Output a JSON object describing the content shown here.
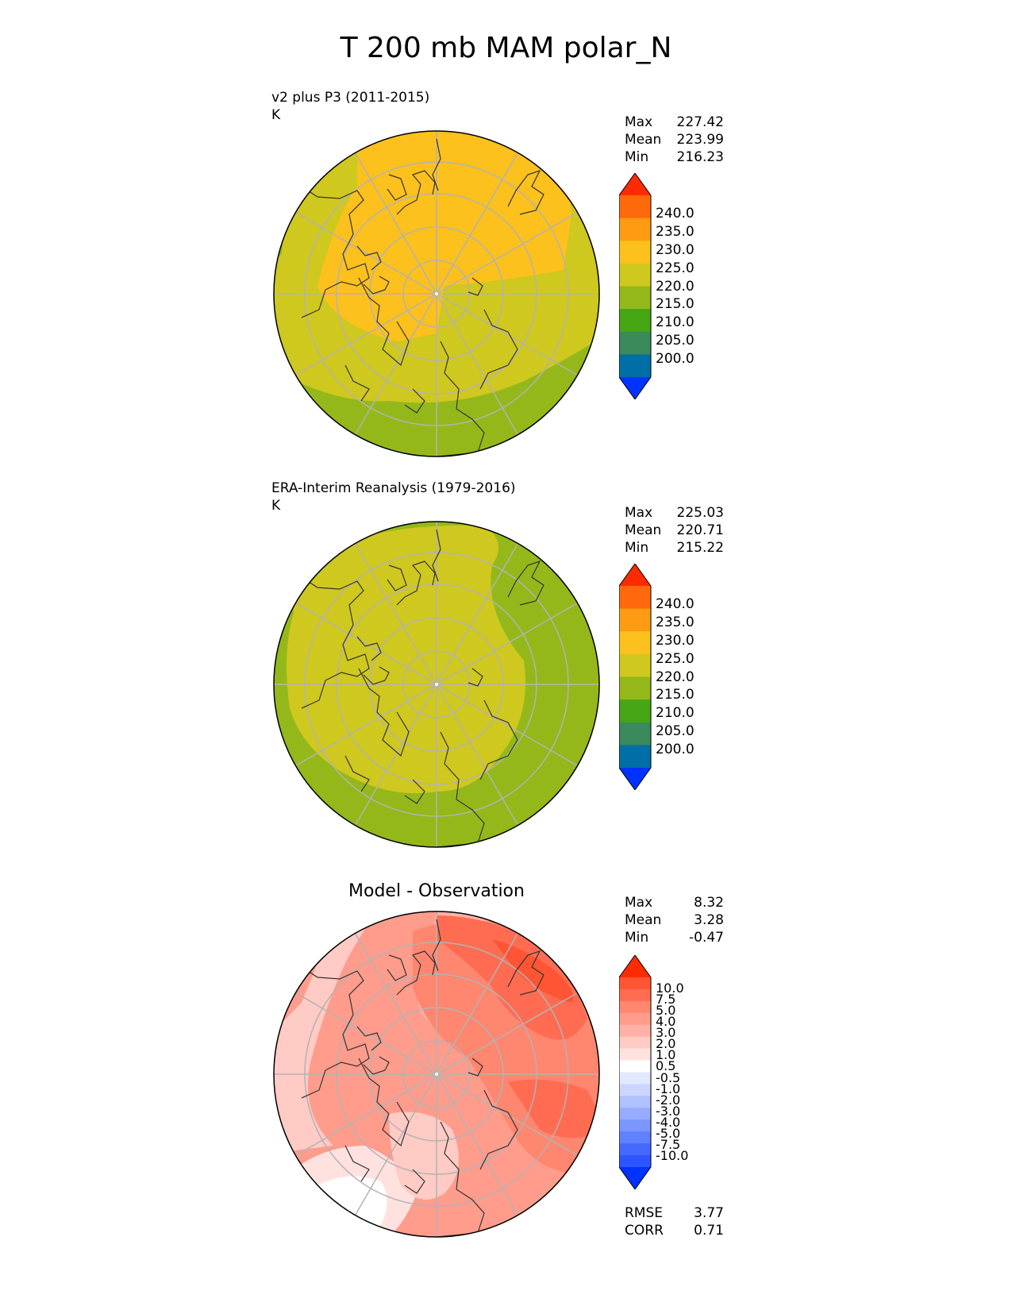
{
  "main_title": "T 200 mb MAM polar_N",
  "colors": {
    "t_levels": [
      "#0033ff",
      "#006fa5",
      "#3a8a5c",
      "#46a613",
      "#94b81a",
      "#cfc81e",
      "#fcc11c",
      "#fd9b12",
      "#fd690b",
      "#ff2b00"
    ],
    "diff_levels": [
      "#0033ff",
      "#2d55ff",
      "#4568ff",
      "#5f80ff",
      "#7b96ff",
      "#97abff",
      "#b1c1ff",
      "#cbd5ff",
      "#e2e8ff",
      "#ffffff",
      "#ffe2e0",
      "#ffcbc4",
      "#ffb1a6",
      "#ff9c8c",
      "#ff866f",
      "#ff6c52",
      "#ff5534",
      "#ff2b00"
    ],
    "map_border": "#000000",
    "grid": "#b3b3b3",
    "coast": "#333333"
  },
  "panels": [
    {
      "name": "model",
      "title": "v2 plus P3 (2011-2015)",
      "units": "K",
      "stats": [
        {
          "label": "Max",
          "value": "227.42"
        },
        {
          "label": "Mean",
          "value": "223.99"
        },
        {
          "label": "Min",
          "value": "216.23"
        }
      ],
      "ticks": [
        "240.0",
        "235.0",
        "230.0",
        "225.0",
        "220.0",
        "215.0",
        "210.0",
        "205.0",
        "200.0"
      ],
      "icons": [
        "polar-map-icon"
      ]
    },
    {
      "name": "obs",
      "title": "ERA-Interim Reanalysis (1979-2016)",
      "units": "K",
      "stats": [
        {
          "label": "Max",
          "value": "225.03"
        },
        {
          "label": "Mean",
          "value": "220.71"
        },
        {
          "label": "Min",
          "value": "215.22"
        }
      ],
      "ticks": [
        "240.0",
        "235.0",
        "230.0",
        "225.0",
        "220.0",
        "215.0",
        "210.0",
        "205.0",
        "200.0"
      ]
    },
    {
      "name": "diff",
      "title": "Model - Observation",
      "stats": [
        {
          "label": "Max",
          "value": "8.32"
        },
        {
          "label": "Mean",
          "value": "3.28"
        },
        {
          "label": "Min",
          "value": "-0.47"
        }
      ],
      "ticks": [
        "10.0",
        "7.5",
        "5.0",
        "4.0",
        "3.0",
        "2.0",
        "1.0",
        "0.5",
        "-0.5",
        "-1.0",
        "-2.0",
        "-3.0",
        "-4.0",
        "-5.0",
        "-7.5",
        "-10.0"
      ],
      "metrics": [
        {
          "label": "RMSE",
          "value": "3.77"
        },
        {
          "label": "CORR",
          "value": "0.71"
        }
      ]
    }
  ]
}
